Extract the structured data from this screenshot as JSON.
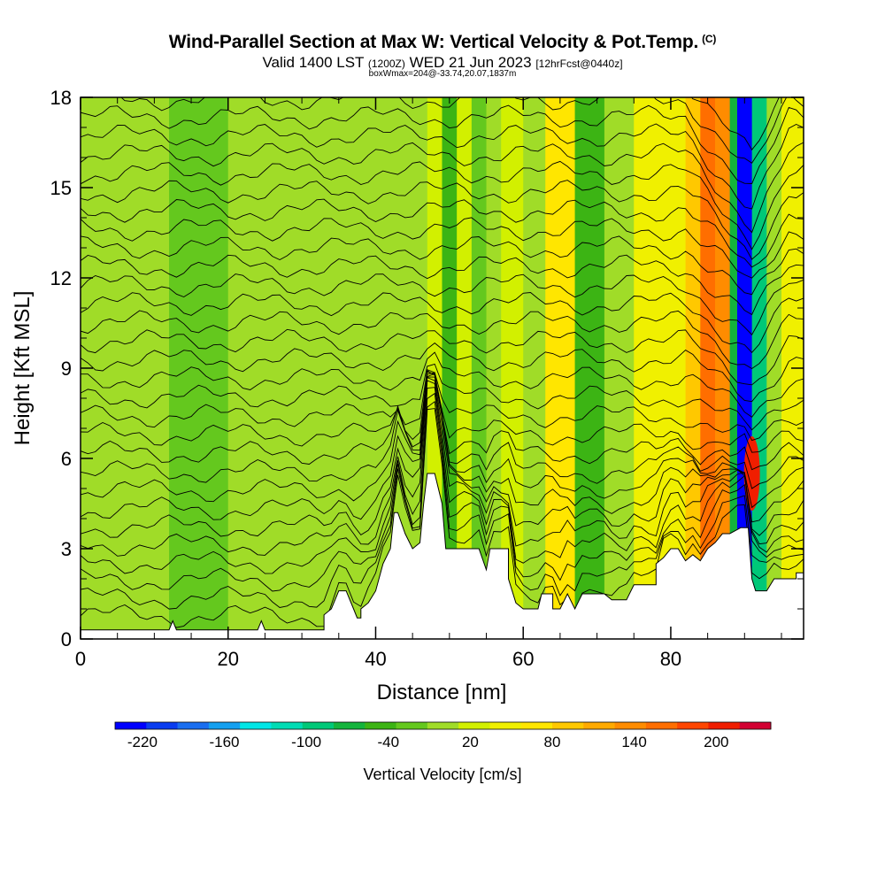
{
  "header": {
    "title": "Wind-Parallel Section at Max W: Vertical Velocity & Pot.Temp.",
    "copyright": "(C)",
    "valid_main": "Valid 1400 LST",
    "valid_utc": "(1200Z)",
    "valid_date": "WED 21 Jun 2023",
    "forecast": "[12hrFcst@0440z]",
    "box_info": "boxWmax=204@-33.74,20.07,1837m"
  },
  "chart_data": {
    "type": "heatmap",
    "xlabel": "Distance [nm]",
    "ylabel": "Height [Kft MSL]",
    "xlim": [
      0,
      98
    ],
    "ylim": [
      0,
      18
    ],
    "x_ticks": [
      "0",
      "20",
      "40",
      "60",
      "80"
    ],
    "y_ticks": [
      "0",
      "3",
      "6",
      "9",
      "12",
      "15",
      "18"
    ],
    "x_tick_values": [
      0,
      20,
      40,
      60,
      80
    ],
    "y_tick_values": [
      0,
      3,
      6,
      9,
      12,
      15,
      18
    ],
    "colorbar": {
      "title": "Vertical Velocity [cm/s]",
      "labels": [
        "-220",
        "-160",
        "-100",
        "-40",
        "20",
        "80",
        "140",
        "200"
      ],
      "colors": [
        "#0000ff",
        "#0a3cf0",
        "#1a6ef0",
        "#14a0f0",
        "#00e6e6",
        "#00dcb4",
        "#00c878",
        "#14b43c",
        "#3cb414",
        "#64c81e",
        "#a0dc28",
        "#d2f000",
        "#f0f000",
        "#ffe600",
        "#ffc800",
        "#ffaa00",
        "#ff8c00",
        "#ff6e00",
        "#ff4600",
        "#f01e00",
        "#d20032"
      ]
    },
    "w_columns_cm_s": [
      {
        "x_start": 0,
        "x_end": 5,
        "w": -10
      },
      {
        "x_start": 5,
        "x_end": 12,
        "w": 0
      },
      {
        "x_start": 12,
        "x_end": 20,
        "w": -15
      },
      {
        "x_start": 20,
        "x_end": 30,
        "w": -5
      },
      {
        "x_start": 30,
        "x_end": 40,
        "w": -10
      },
      {
        "x_start": 40,
        "x_end": 47,
        "w": 0
      },
      {
        "x_start": 47,
        "x_end": 49,
        "w": 30
      },
      {
        "x_start": 49,
        "x_end": 51,
        "w": -40
      },
      {
        "x_start": 51,
        "x_end": 53,
        "w": 20
      },
      {
        "x_start": 53,
        "x_end": 55,
        "w": -30
      },
      {
        "x_start": 55,
        "x_end": 57,
        "w": 10
      },
      {
        "x_start": 57,
        "x_end": 60,
        "w": 20
      },
      {
        "x_start": 60,
        "x_end": 63,
        "w": -10
      },
      {
        "x_start": 63,
        "x_end": 67,
        "w": 60
      },
      {
        "x_start": 67,
        "x_end": 71,
        "w": -40
      },
      {
        "x_start": 71,
        "x_end": 75,
        "w": 10
      },
      {
        "x_start": 75,
        "x_end": 79,
        "w": 50
      },
      {
        "x_start": 79,
        "x_end": 82,
        "w": 40
      },
      {
        "x_start": 82,
        "x_end": 84,
        "w": 80
      },
      {
        "x_start": 84,
        "x_end": 86,
        "w": 160
      },
      {
        "x_start": 86,
        "x_end": 88,
        "w": 130
      },
      {
        "x_start": 88,
        "x_end": 89,
        "w": -80
      },
      {
        "x_start": 89,
        "x_end": 91,
        "w": -220
      },
      {
        "x_start": 91,
        "x_end": 93,
        "w": -100
      },
      {
        "x_start": 93,
        "x_end": 95,
        "w": 0
      },
      {
        "x_start": 95,
        "x_end": 98,
        "w": 40
      }
    ],
    "max_w_core": {
      "x": 91,
      "y": 5.5,
      "w": 204
    },
    "terrain_kft": [
      [
        0,
        0.3
      ],
      [
        12,
        0.3
      ],
      [
        12.5,
        0.6
      ],
      [
        13,
        0.3
      ],
      [
        24,
        0.3
      ],
      [
        24.5,
        0.6
      ],
      [
        25,
        0.3
      ],
      [
        33,
        0.3
      ],
      [
        33,
        0.8
      ],
      [
        34,
        1.0
      ],
      [
        35,
        1.6
      ],
      [
        36,
        1.6
      ],
      [
        37,
        1.0
      ],
      [
        37.5,
        0.7
      ],
      [
        38,
        0.7
      ],
      [
        38,
        1.0
      ],
      [
        39,
        1.2
      ],
      [
        40,
        1.6
      ],
      [
        41,
        2.5
      ],
      [
        42,
        3.0
      ],
      [
        42.5,
        4.2
      ],
      [
        43,
        4.2
      ],
      [
        44,
        3.5
      ],
      [
        45,
        3.0
      ],
      [
        46,
        3.2
      ],
      [
        46.5,
        4.5
      ],
      [
        47,
        5.5
      ],
      [
        48,
        5.5
      ],
      [
        49,
        4.5
      ],
      [
        49.5,
        3.0
      ],
      [
        54,
        3.0
      ],
      [
        55,
        2.3
      ],
      [
        55.5,
        3.0
      ],
      [
        58,
        3.0
      ],
      [
        58,
        2.0
      ],
      [
        59,
        1.2
      ],
      [
        60,
        1.0
      ],
      [
        62,
        1.0
      ],
      [
        62.5,
        1.5
      ],
      [
        64,
        1.5
      ],
      [
        64,
        1.0
      ],
      [
        65,
        1.0
      ],
      [
        66,
        1.5
      ],
      [
        67,
        1.0
      ],
      [
        68,
        1.5
      ],
      [
        70,
        1.5
      ],
      [
        71,
        1.5
      ],
      [
        72,
        1.3
      ],
      [
        74,
        1.3
      ],
      [
        75,
        1.8
      ],
      [
        78,
        1.8
      ],
      [
        78,
        2.5
      ],
      [
        79,
        2.7
      ],
      [
        80,
        3.0
      ],
      [
        81,
        3.0
      ],
      [
        82,
        2.6
      ],
      [
        83,
        2.8
      ],
      [
        84,
        2.6
      ],
      [
        85,
        3.0
      ],
      [
        86,
        3.2
      ],
      [
        87,
        3.5
      ],
      [
        88,
        3.5
      ],
      [
        89.5,
        3.7
      ],
      [
        90.5,
        3.7
      ],
      [
        91,
        2.0
      ],
      [
        91.5,
        1.6
      ],
      [
        93,
        1.6
      ],
      [
        94,
        2.0
      ],
      [
        97,
        2.0
      ],
      [
        97,
        2.2
      ],
      [
        98,
        2.2
      ]
    ],
    "contour_levels": 30
  }
}
